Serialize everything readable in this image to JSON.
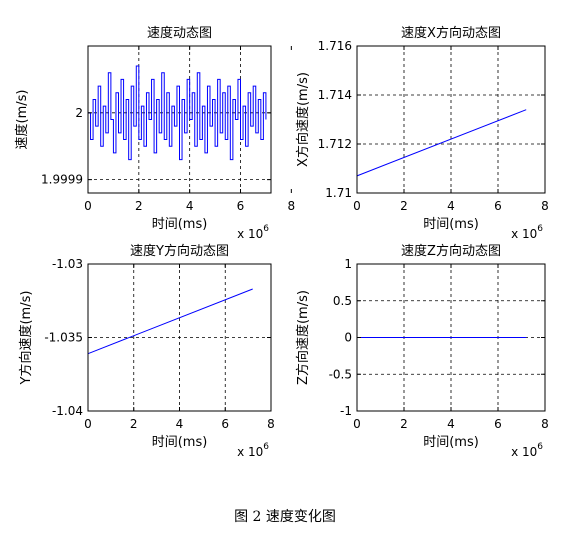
{
  "caption": "图 2 速度变化图",
  "chart_data": [
    {
      "type": "line",
      "title": "速度动态图",
      "xlabel": "时间(ms)",
      "ylabel": "速度(m/s)",
      "x_multiplier_label": "x 10",
      "x_multiplier_exp": "6",
      "xlim": [
        0,
        7200000
      ],
      "ylim": [
        1.99988,
        2.0001
      ],
      "xticks": [
        0,
        2,
        4,
        6,
        8
      ],
      "xtick_scale": 1000000,
      "yticks": [
        1.9999,
        2.0
      ],
      "ytick_labels": [
        "1.9999",
        "2"
      ],
      "grid": true,
      "line_color": "#0000ff",
      "series": [
        {
          "x_start": 0,
          "x_end": 7000000,
          "values": [
            2.0,
            1.99996,
            2.00002,
            1.99998,
            2.00004,
            1.99995,
            2.00001,
            1.99997,
            2.00006,
            1.99999,
            1.99994,
            2.00003,
            1.99997,
            2.00005,
            1.99996,
            2.00002,
            1.99993,
            2.00004,
            1.99998,
            2.00007,
            1.99996,
            2.00001,
            1.99995,
            2.00003,
            1.99999,
            2.00005,
            1.99994,
            2.00002,
            1.99997,
            2.00006,
            1.99996,
            2.00003,
            1.99995,
            2.00001,
            1.99998,
            2.00004,
            1.99993,
            2.00002,
            1.99997,
            2.00005,
            1.99999,
            2.00003,
            1.99995,
            2.00006,
            1.99996,
            2.00001,
            1.99994,
            2.00004,
            1.99998,
            2.00002,
            1.99995,
            2.00005,
            1.99997,
            2.00003,
            1.99996,
            2.00004,
            1.99993,
            2.00002,
            1.99999,
            2.00005,
            1.99996,
            2.00001,
            1.99995,
            2.00003,
            1.99998,
            2.00004,
            1.99997,
            2.00002,
            1.99996,
            2.00003,
            1.99999
          ]
        }
      ]
    },
    {
      "type": "line",
      "title": "速度X方向动态图",
      "xlabel": "时间(ms)",
      "ylabel": "X方向速度(m/s)",
      "x_multiplier_label": "x 10",
      "x_multiplier_exp": "6",
      "xlim": [
        0,
        8000000
      ],
      "ylim": [
        1.71,
        1.716
      ],
      "xticks": [
        0,
        2,
        4,
        6,
        8
      ],
      "xtick_scale": 1000000,
      "yticks": [
        1.71,
        1.712,
        1.714,
        1.716
      ],
      "ytick_labels": [
        "1.71",
        "1.712",
        "1.714",
        "1.716"
      ],
      "grid": true,
      "line_color": "#0000ff",
      "series": [
        {
          "x": [
            0,
            7200000
          ],
          "values": [
            1.7107,
            1.7134
          ]
        }
      ]
    },
    {
      "type": "line",
      "title": "速度Y方向动态图",
      "xlabel": "时间(ms)",
      "ylabel": "Y方向速度(m/s)",
      "x_multiplier_label": "x 10",
      "x_multiplier_exp": "6",
      "xlim": [
        0,
        8000000
      ],
      "ylim": [
        -1.04,
        -1.03
      ],
      "xticks": [
        0,
        2,
        4,
        6,
        8
      ],
      "xtick_scale": 1000000,
      "yticks": [
        -1.04,
        -1.035,
        -1.03
      ],
      "ytick_labels": [
        "-1.04",
        "-1.035",
        "-1.03"
      ],
      "grid": true,
      "line_color": "#0000ff",
      "series": [
        {
          "x": [
            0,
            7200000
          ],
          "values": [
            -1.0361,
            -1.0317
          ]
        }
      ]
    },
    {
      "type": "line",
      "title": "速度Z方向动态图",
      "xlabel": "时间(ms)",
      "ylabel": "Z方向速度(m/s)",
      "x_multiplier_label": "x 10",
      "x_multiplier_exp": "6",
      "xlim": [
        0,
        8000000
      ],
      "ylim": [
        -1,
        1
      ],
      "xticks": [
        0,
        2,
        4,
        6,
        8
      ],
      "xtick_scale": 1000000,
      "yticks": [
        -1,
        -0.5,
        0,
        0.5,
        1
      ],
      "ytick_labels": [
        "-1",
        "-0.5",
        "0",
        "0.5",
        "1"
      ],
      "grid": true,
      "line_color": "#0000ff",
      "series": [
        {
          "x": [
            0,
            7200000
          ],
          "values": [
            0,
            0
          ]
        }
      ]
    }
  ]
}
